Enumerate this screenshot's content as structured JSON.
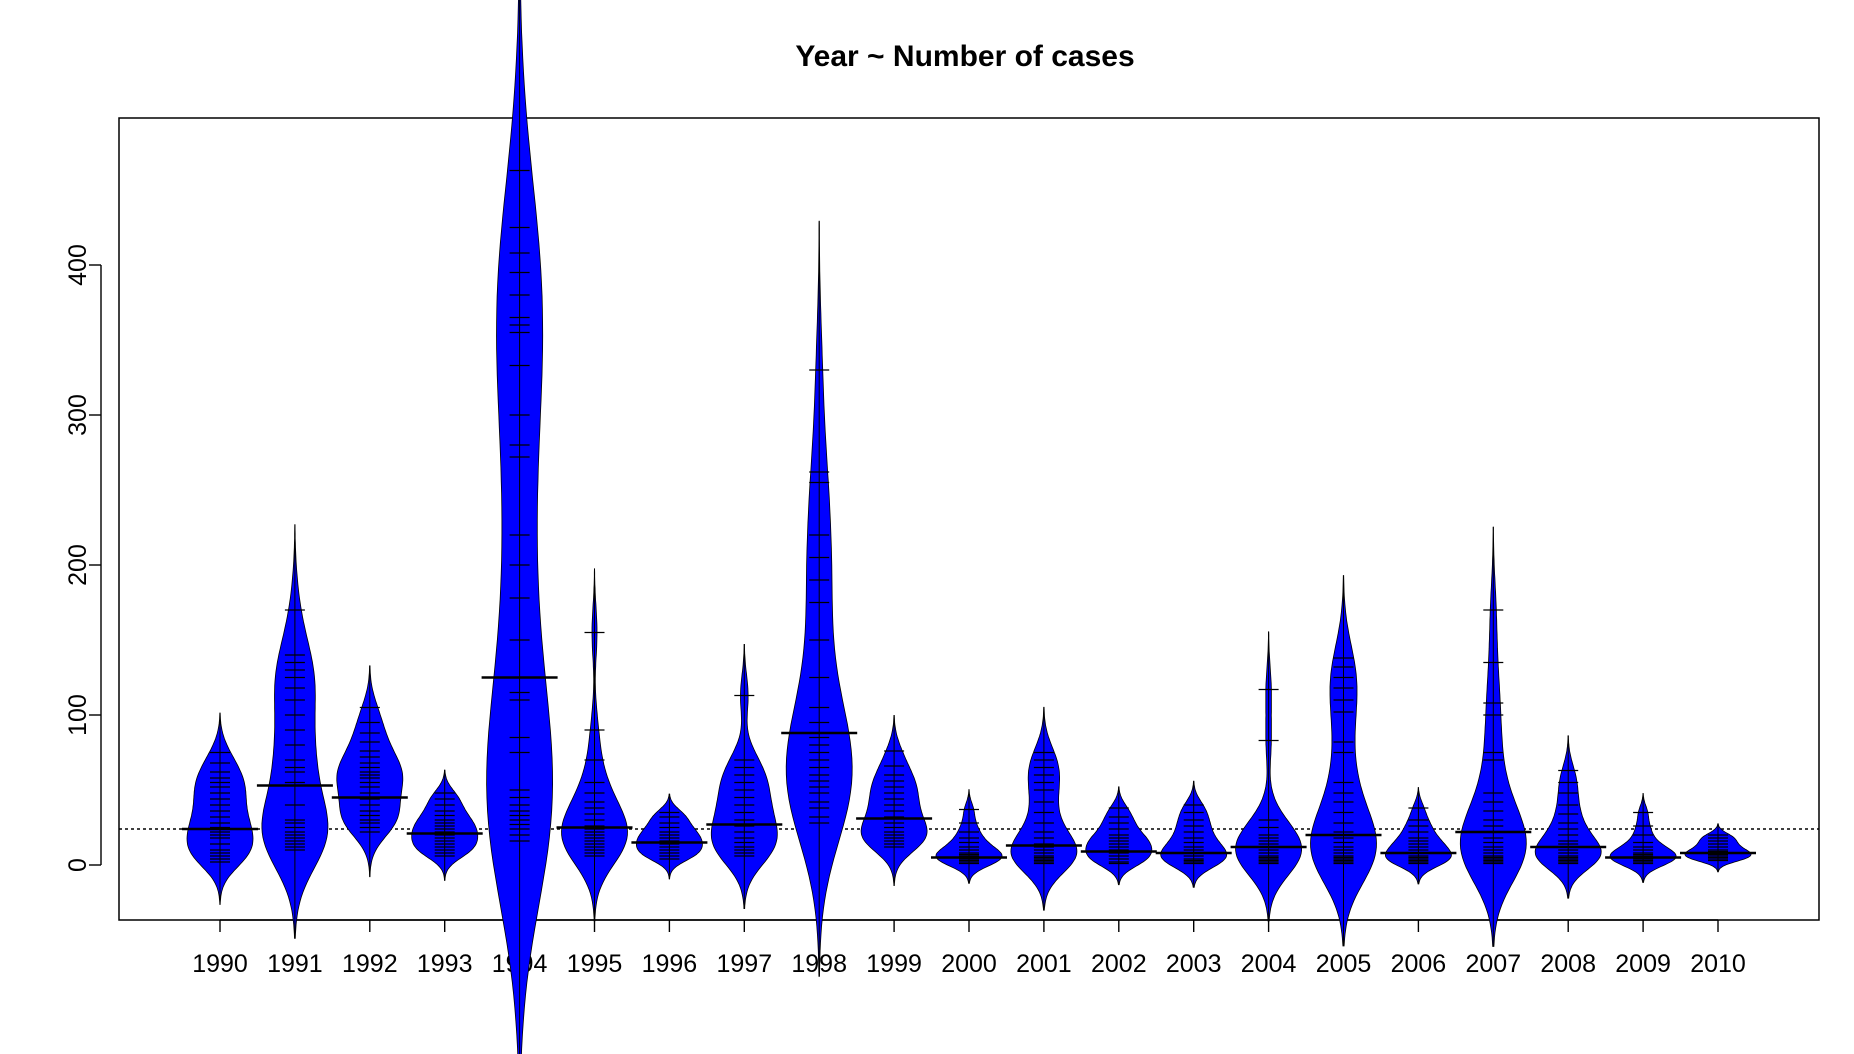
{
  "chart_data": {
    "type": "beanplot",
    "title": "Year ~ Number of cases",
    "xlabel": "",
    "ylabel": "",
    "ylim": [
      -38,
      478
    ],
    "yticks": [
      0,
      100,
      200,
      300,
      400
    ],
    "overall_line": 24,
    "categories": [
      "1990",
      "1991",
      "1992",
      "1993",
      "1994",
      "1995",
      "1996",
      "1997",
      "1998",
      "1999",
      "2000",
      "2001",
      "2002",
      "2003",
      "2004",
      "2005",
      "2006",
      "2007",
      "2008",
      "2009",
      "2010"
    ],
    "beans": [
      {
        "year": "1990",
        "mean": 24,
        "min": 0,
        "max": 75,
        "values": [
          2,
          4,
          6,
          8,
          10,
          14,
          18,
          20,
          22,
          25,
          28,
          32,
          36,
          40,
          44,
          48,
          52,
          55,
          58,
          62,
          68,
          75
        ]
      },
      {
        "year": "1991",
        "mean": 53,
        "min": 8,
        "max": 170,
        "values": [
          10,
          12,
          14,
          16,
          18,
          20,
          22,
          25,
          28,
          30,
          40,
          55,
          62,
          65,
          70,
          80,
          90,
          100,
          110,
          118,
          125,
          130,
          135,
          140,
          170
        ]
      },
      {
        "year": "1992",
        "mean": 45,
        "min": 20,
        "max": 105,
        "values": [
          22,
          25,
          28,
          30,
          33,
          36,
          40,
          44,
          48,
          52,
          55,
          58,
          60,
          62,
          65,
          68,
          72,
          76,
          82,
          88,
          95,
          105
        ]
      },
      {
        "year": "1993",
        "mean": 21,
        "min": 5,
        "max": 48,
        "values": [
          6,
          8,
          10,
          12,
          14,
          16,
          18,
          20,
          22,
          24,
          26,
          28,
          30,
          33,
          36,
          40,
          44,
          48
        ]
      },
      {
        "year": "1994",
        "mean": 125,
        "min": 14,
        "max": 463,
        "values": [
          16,
          20,
          24,
          27,
          30,
          33,
          36,
          40,
          45,
          50,
          75,
          85,
          110,
          115,
          150,
          178,
          200,
          220,
          272,
          280,
          300,
          333,
          355,
          360,
          365,
          380,
          395,
          408,
          425,
          463
        ]
      },
      {
        "year": "1995",
        "mean": 25,
        "min": 5,
        "max": 155,
        "values": [
          6,
          8,
          10,
          12,
          14,
          16,
          18,
          20,
          22,
          24,
          26,
          30,
          34,
          38,
          42,
          48,
          55,
          70,
          90,
          155
        ]
      },
      {
        "year": "1996",
        "mean": 15,
        "min": 3,
        "max": 35,
        "values": [
          4,
          6,
          8,
          10,
          12,
          14,
          16,
          18,
          20,
          22,
          25,
          28,
          32,
          35
        ]
      },
      {
        "year": "1997",
        "mean": 27,
        "min": 5,
        "max": 113,
        "values": [
          6,
          8,
          10,
          12,
          15,
          18,
          22,
          26,
          30,
          35,
          40,
          45,
          50,
          55,
          60,
          65,
          70,
          113
        ]
      },
      {
        "year": "1998",
        "mean": 88,
        "min": 25,
        "max": 330,
        "values": [
          28,
          32,
          38,
          42,
          48,
          52,
          56,
          60,
          65,
          70,
          75,
          80,
          85,
          95,
          105,
          125,
          150,
          175,
          190,
          205,
          220,
          255,
          262,
          330
        ]
      },
      {
        "year": "1999",
        "mean": 31,
        "min": 10,
        "max": 76,
        "values": [
          12,
          14,
          16,
          18,
          20,
          22,
          25,
          28,
          32,
          36,
          40,
          44,
          48,
          52,
          56,
          60,
          66,
          76
        ]
      },
      {
        "year": "2000",
        "mean": 5,
        "min": 1,
        "max": 37,
        "values": [
          1,
          2,
          3,
          4,
          5,
          6,
          7,
          8,
          10,
          12,
          15,
          18,
          22,
          28,
          37
        ]
      },
      {
        "year": "2001",
        "mean": 13,
        "min": 0,
        "max": 75,
        "values": [
          1,
          2,
          3,
          4,
          5,
          6,
          8,
          10,
          12,
          14,
          18,
          22,
          28,
          35,
          42,
          50,
          55,
          60,
          65,
          70,
          75
        ]
      },
      {
        "year": "2002",
        "mean": 9,
        "min": 1,
        "max": 38,
        "values": [
          1,
          2,
          4,
          6,
          8,
          10,
          12,
          14,
          16,
          18,
          20,
          24,
          28,
          32,
          38
        ]
      },
      {
        "year": "2003",
        "mean": 8,
        "min": 1,
        "max": 40,
        "values": [
          1,
          2,
          3,
          4,
          6,
          8,
          10,
          12,
          15,
          18,
          22,
          26,
          30,
          35,
          40
        ]
      },
      {
        "year": "2004",
        "mean": 12,
        "min": 1,
        "max": 117,
        "values": [
          1,
          2,
          3,
          4,
          5,
          6,
          8,
          10,
          12,
          14,
          16,
          18,
          20,
          25,
          30,
          83,
          117
        ]
      },
      {
        "year": "2005",
        "mean": 20,
        "min": 1,
        "max": 138,
        "values": [
          1,
          2,
          3,
          4,
          5,
          6,
          8,
          10,
          12,
          15,
          18,
          22,
          28,
          35,
          42,
          48,
          55,
          75,
          82,
          102,
          110,
          118,
          125,
          132,
          138
        ]
      },
      {
        "year": "2006",
        "mean": 8,
        "min": 1,
        "max": 38,
        "values": [
          1,
          2,
          3,
          4,
          5,
          6,
          8,
          10,
          12,
          14,
          16,
          18,
          22,
          26,
          30,
          38
        ]
      },
      {
        "year": "2007",
        "mean": 22,
        "min": 1,
        "max": 170,
        "values": [
          1,
          2,
          3,
          4,
          5,
          6,
          8,
          10,
          12,
          15,
          18,
          22,
          26,
          30,
          36,
          42,
          48,
          70,
          75,
          100,
          108,
          135,
          170
        ]
      },
      {
        "year": "2008",
        "mean": 12,
        "min": 1,
        "max": 63,
        "values": [
          1,
          2,
          3,
          4,
          5,
          6,
          8,
          10,
          12,
          14,
          16,
          20,
          24,
          28,
          34,
          40,
          48,
          55,
          63
        ]
      },
      {
        "year": "2009",
        "mean": 5,
        "min": 1,
        "max": 35,
        "values": [
          1,
          2,
          3,
          4,
          5,
          6,
          7,
          8,
          10,
          12,
          15,
          20,
          26,
          35
        ]
      },
      {
        "year": "2010",
        "mean": 8,
        "min": 3,
        "max": 20,
        "values": [
          3,
          4,
          5,
          6,
          7,
          8,
          9,
          10,
          12,
          14,
          16,
          18,
          20
        ]
      }
    ],
    "colors": {
      "bean_fill": "#0000ff",
      "bean_outline": "#000000",
      "mean_line": "#000000",
      "overall_line": "#000000"
    },
    "grid": false,
    "legend": "none"
  }
}
